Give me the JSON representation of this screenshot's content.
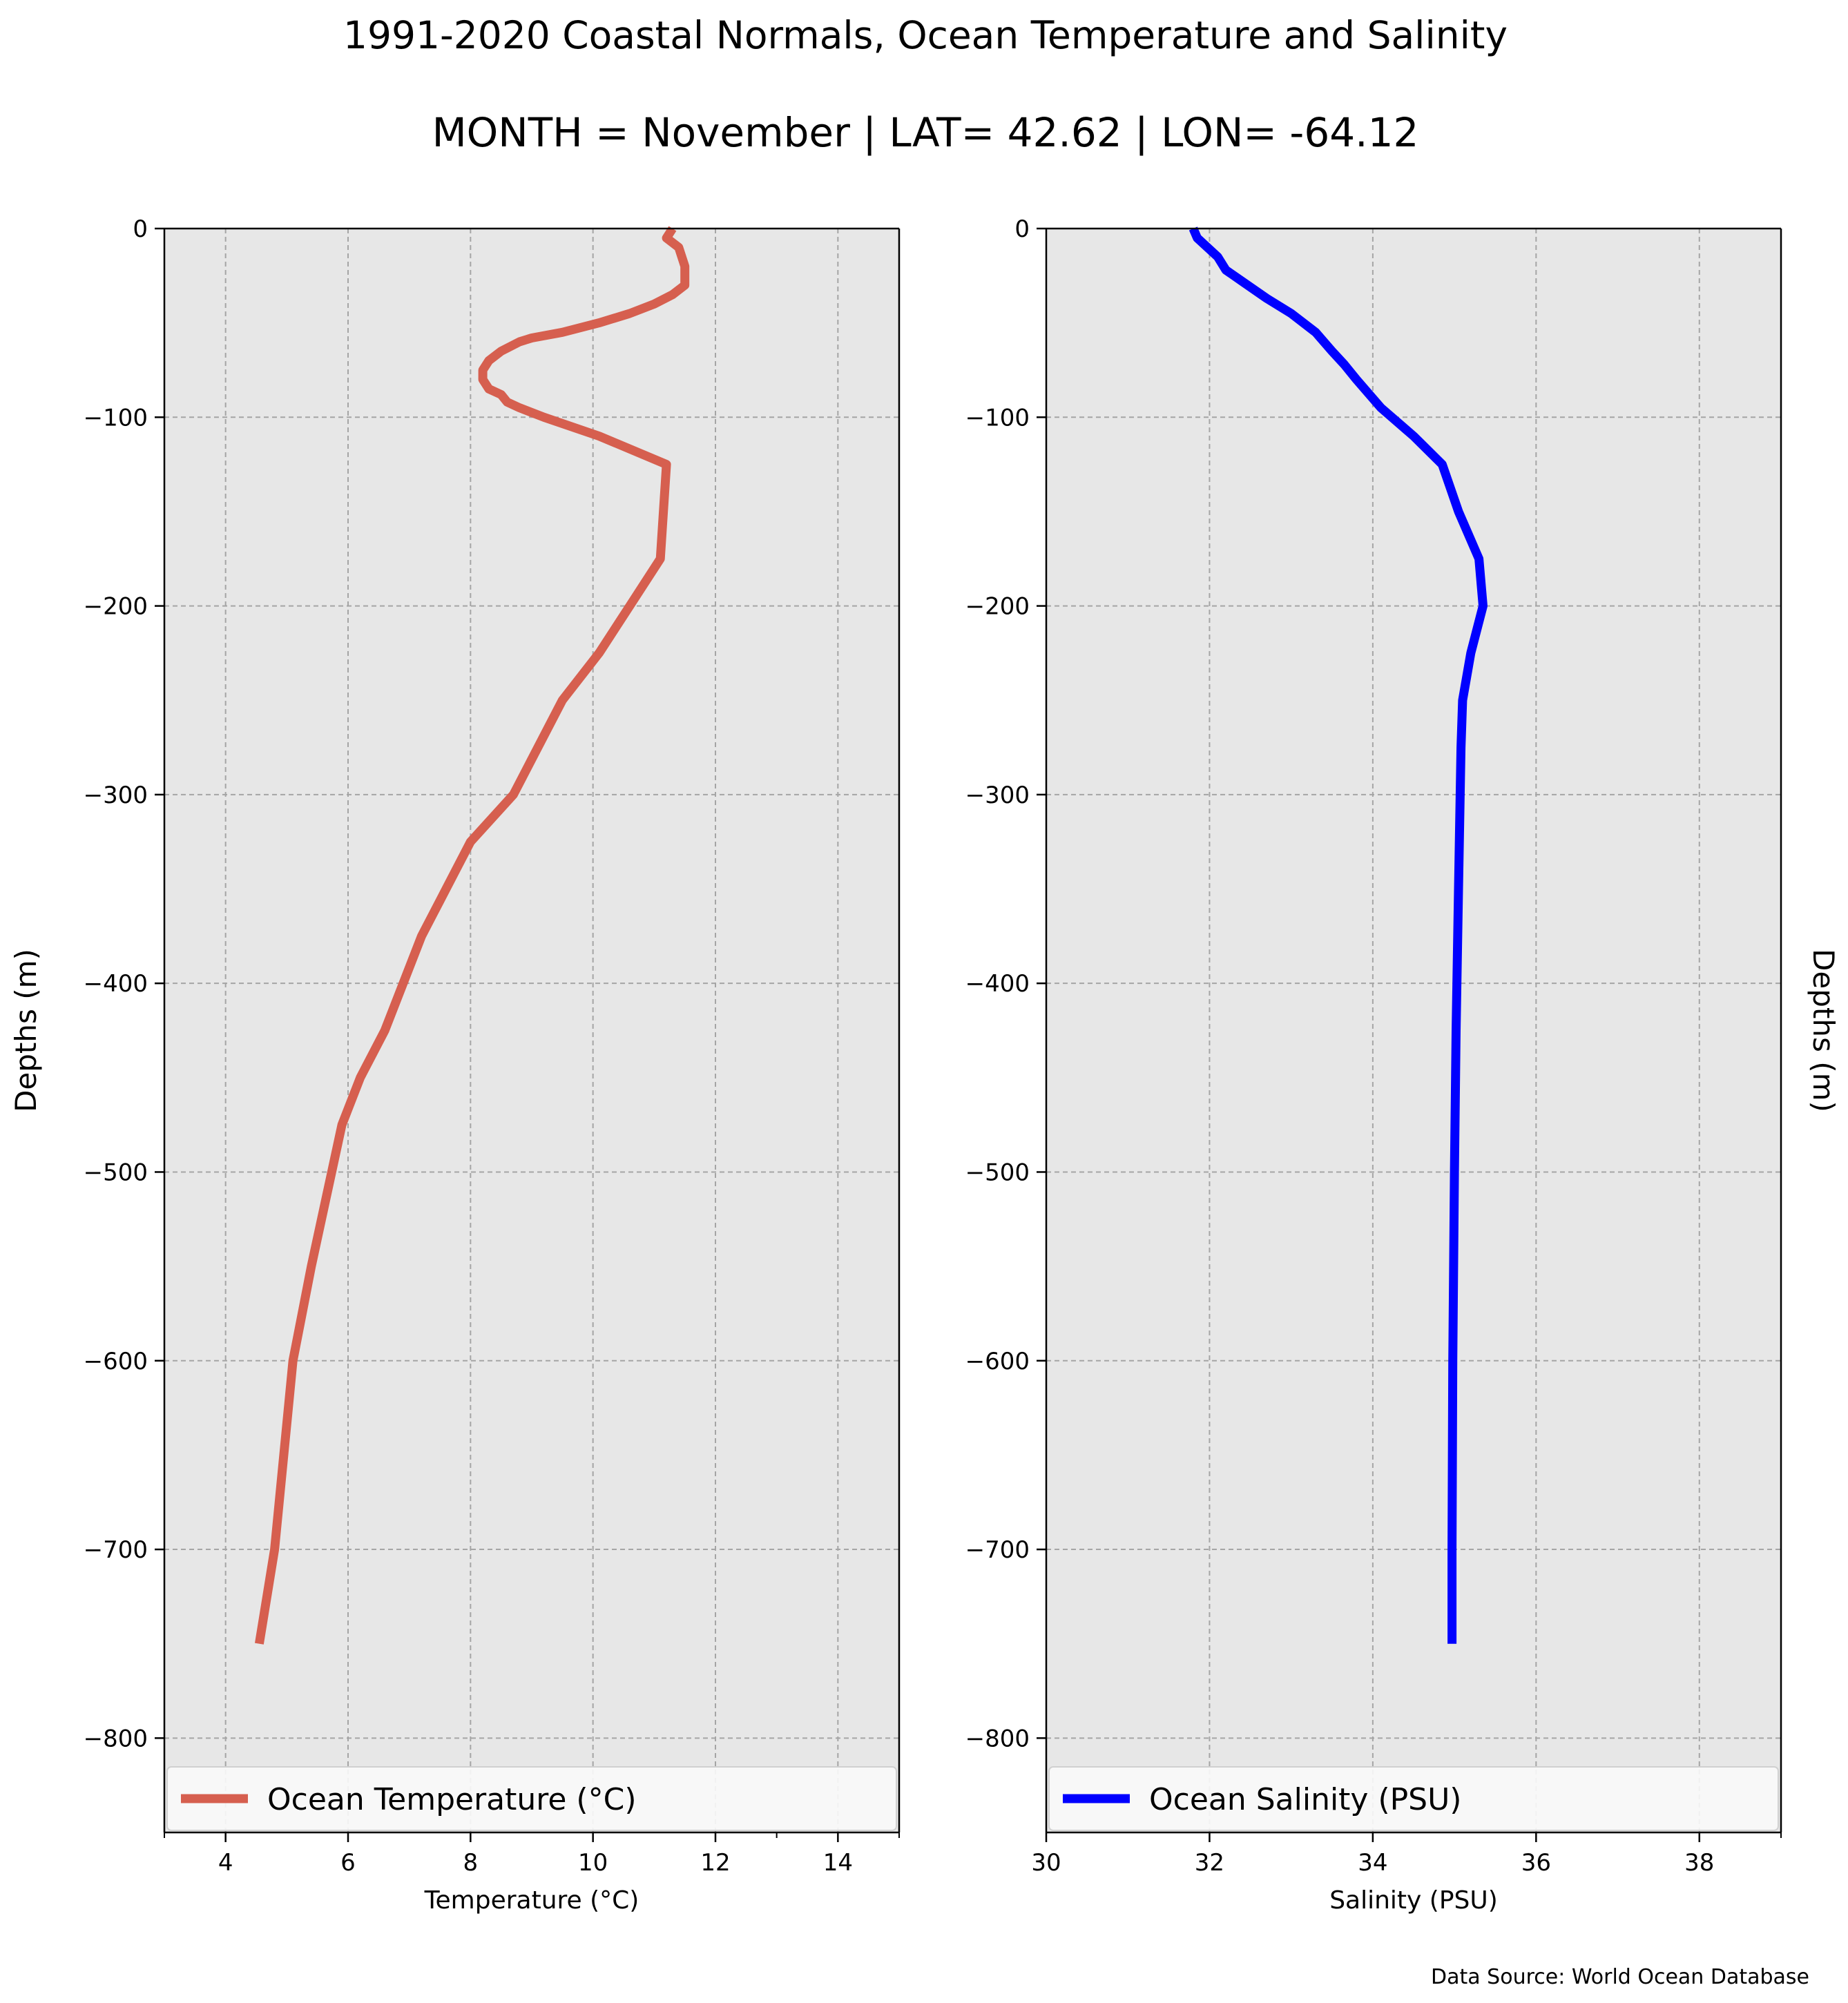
{
  "figure": {
    "title": "1991-2020 Coastal Normals, Ocean Temperature and Salinity",
    "subtitle": "MONTH = November | LAT= 42.62 | LON= -64.12",
    "source_note": "Data Source: World Ocean Database"
  },
  "chart_data": [
    {
      "type": "line",
      "xlabel": "Temperature ($^\\circ$C)",
      "xlabel_display": "Temperature (°C)",
      "ylabel": "Depths (m)",
      "xlim": [
        3,
        15
      ],
      "ylim": [
        -850,
        0
      ],
      "xticks": [
        4,
        6,
        8,
        10,
        12,
        14
      ],
      "yticks": [
        0,
        -100,
        -200,
        -300,
        -400,
        -500,
        -600,
        -700,
        -800
      ],
      "ytick_labels": [
        "0",
        "−100",
        "−200",
        "−300",
        "−400",
        "−500",
        "−600",
        "−700",
        "−800"
      ],
      "grid": true,
      "legend_position": "bottom",
      "series": [
        {
          "name": "Ocean Temperature (°C)",
          "color": "#d65f4f",
          "x": [
            11.3,
            11.2,
            11.4,
            11.5,
            11.5,
            11.3,
            11.0,
            10.6,
            10.1,
            9.5,
            9.0,
            8.8,
            8.5,
            8.3,
            8.2,
            8.2,
            8.3,
            8.5,
            8.6,
            8.8,
            9.2,
            10.1,
            11.2,
            11.1,
            10.6,
            10.1,
            9.5,
            8.7,
            8.0,
            7.6,
            7.2,
            6.6,
            6.2,
            5.9,
            5.4,
            5.1,
            4.8,
            4.55
          ],
          "y": [
            0,
            -5,
            -10,
            -20,
            -30,
            -35,
            -40,
            -45,
            -50,
            -55,
            -58,
            -60,
            -65,
            -70,
            -75,
            -80,
            -85,
            -88,
            -92,
            -95,
            -100,
            -110,
            -125,
            -175,
            -200,
            -225,
            -250,
            -300,
            -325,
            -350,
            -375,
            -425,
            -450,
            -475,
            -550,
            -600,
            -700,
            -750
          ]
        }
      ]
    },
    {
      "type": "line",
      "xlabel": "Salinity (PSU)",
      "ylabel": "Depths (m)",
      "xlim": [
        30,
        39
      ],
      "ylim": [
        -850,
        0
      ],
      "xticks": [
        30,
        32,
        34,
        36,
        38
      ],
      "yticks": [
        0,
        -100,
        -200,
        -300,
        -400,
        -500,
        -600,
        -700,
        -800
      ],
      "ytick_labels": [
        "0",
        "−100",
        "−200",
        "−300",
        "−400",
        "−500",
        "−600",
        "−700",
        "−800"
      ],
      "grid": true,
      "legend_position": "bottom",
      "series": [
        {
          "name": "Ocean Salinity (PSU)",
          "color": "#0000ff",
          "x": [
            31.8,
            31.85,
            32.1,
            32.2,
            32.4,
            32.7,
            33.0,
            33.3,
            33.5,
            33.65,
            33.8,
            34.0,
            34.1,
            34.5,
            34.85,
            35.05,
            35.3,
            35.35,
            35.2,
            35.1,
            35.08,
            35.05,
            35.02,
            35.0,
            34.98,
            34.97,
            34.97
          ],
          "y": [
            0,
            -5,
            -15,
            -22,
            -28,
            -37,
            -45,
            -55,
            -65,
            -72,
            -80,
            -90,
            -95,
            -110,
            -125,
            -150,
            -175,
            -200,
            -225,
            -250,
            -275,
            -350,
            -425,
            -500,
            -600,
            -700,
            -750
          ]
        }
      ]
    }
  ]
}
